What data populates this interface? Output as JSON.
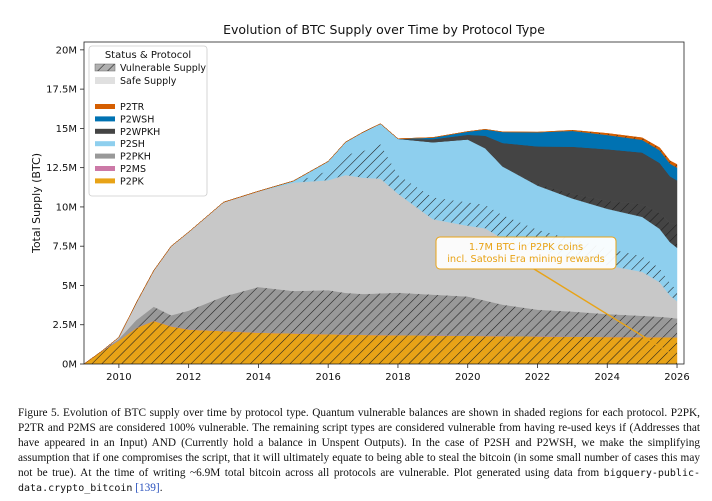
{
  "chart_data": {
    "type": "area",
    "title": "Evolution of BTC Supply over Time by Protocol Type",
    "ylabel": "Total Supply (BTC)",
    "xlabel": "",
    "xlim": [
      2009,
      2026.2
    ],
    "ylim": [
      0,
      20500000
    ],
    "x_ticks": [
      2010,
      2012,
      2014,
      2016,
      2018,
      2020,
      2022,
      2024,
      2026
    ],
    "y_ticks": [
      {
        "value": 0,
        "label": "0M"
      },
      {
        "value": 2500000,
        "label": "2.5M"
      },
      {
        "value": 5000000,
        "label": "5M"
      },
      {
        "value": 7500000,
        "label": "7.5M"
      },
      {
        "value": 10000000,
        "label": "10M"
      },
      {
        "value": 12500000,
        "label": "12.5M"
      },
      {
        "value": 15000000,
        "label": "15M"
      },
      {
        "value": 17500000,
        "label": "17.5M"
      },
      {
        "value": 20000000,
        "label": "20M"
      }
    ],
    "grid": false,
    "legend_placement": "top-left",
    "legend_title": "Status & Protocol",
    "status_legend": [
      {
        "name": "Vulnerable Supply",
        "style": "hatch"
      },
      {
        "name": "Safe Supply",
        "style": "solid-light"
      }
    ],
    "x": [
      2009,
      2009.5,
      2010,
      2010.5,
      2011,
      2011.5,
      2012,
      2013,
      2014,
      2015,
      2016,
      2016.5,
      2017,
      2017.5,
      2018,
      2019,
      2020,
      2020.5,
      2021,
      2022,
      2023,
      2024,
      2025,
      2025.5,
      2025.8,
      2026
    ],
    "series": [
      {
        "name": "P2PK",
        "color": "#e8a317",
        "vulnerable": [
          0,
          800000,
          1500000,
          2300000,
          2750000,
          2400000,
          2200000,
          2100000,
          2000000,
          1950000,
          1900000,
          1880000,
          1860000,
          1850000,
          1840000,
          1820000,
          1800000,
          1790000,
          1780000,
          1760000,
          1740000,
          1730000,
          1720000,
          1710000,
          1705000,
          1700000
        ],
        "safe": [
          0,
          0,
          0,
          0,
          0,
          0,
          0,
          0,
          0,
          0,
          0,
          0,
          0,
          0,
          0,
          0,
          0,
          0,
          0,
          0,
          0,
          0,
          0,
          0,
          0,
          0
        ]
      },
      {
        "name": "P2MS",
        "color": "#cc79a7",
        "vulnerable": [
          0,
          0,
          0,
          0,
          0,
          0,
          0,
          0,
          0,
          0,
          0,
          0,
          0,
          0,
          0,
          0,
          0,
          0,
          0,
          0,
          0,
          0,
          0,
          0,
          0,
          0
        ],
        "safe": [
          0,
          0,
          0,
          0,
          0,
          0,
          0,
          0,
          0,
          0,
          0,
          0,
          0,
          0,
          0,
          0,
          0,
          0,
          0,
          0,
          0,
          0,
          0,
          0,
          0,
          0
        ]
      },
      {
        "name": "P2PKH",
        "color": "#999999",
        "vulnerable": [
          0,
          0,
          100000,
          500000,
          900000,
          700000,
          1200000,
          2200000,
          2900000,
          2700000,
          2800000,
          2650000,
          2600000,
          2650000,
          2700000,
          2600000,
          2500000,
          2250000,
          2000000,
          1700000,
          1600000,
          1450000,
          1350000,
          1300000,
          1250000,
          1200000
        ],
        "safe": [
          0,
          0,
          100000,
          1100000,
          2300000,
          4400000,
          5000000,
          6000000,
          6100000,
          6900000,
          7000000,
          7500000,
          7400000,
          7300000,
          6300000,
          4800000,
          4500000,
          4600000,
          4200000,
          3800000,
          3400000,
          3100000,
          2800000,
          2200000,
          1400000,
          1100000
        ]
      },
      {
        "name": "P2SH",
        "color": "#8ecfee",
        "vulnerable": [
          0,
          0,
          0,
          0,
          0,
          0,
          0,
          0,
          0,
          0,
          600000,
          1300000,
          1700000,
          2200000,
          1200000,
          1400000,
          1500000,
          1500000,
          1500000,
          1300000,
          1200000,
          1100000,
          1000000,
          900000,
          800000,
          700000
        ],
        "safe": [
          0,
          0,
          0,
          0,
          0,
          0,
          0,
          0,
          0,
          100000,
          600000,
          800000,
          1200000,
          1300000,
          2300000,
          3500000,
          4000000,
          3600000,
          3100000,
          2800000,
          2600000,
          2500000,
          2500000,
          2500000,
          2600000,
          2700000
        ]
      },
      {
        "name": "P2WPKH",
        "color": "#444444",
        "vulnerable": [
          0,
          0,
          0,
          0,
          0,
          0,
          0,
          0,
          0,
          0,
          0,
          0,
          0,
          0,
          0,
          0,
          0,
          0,
          0,
          100000,
          300000,
          500000,
          800000,
          1000000,
          1200000,
          1500000
        ],
        "safe": [
          0,
          0,
          0,
          0,
          0,
          0,
          0,
          0,
          0,
          0,
          0,
          0,
          0,
          0,
          0,
          200000,
          300000,
          800000,
          1500000,
          2400000,
          3000000,
          3300000,
          3300000,
          3200000,
          3000000,
          2800000
        ]
      },
      {
        "name": "P2WSH",
        "color": "#0072b2",
        "vulnerable": [
          0,
          0,
          0,
          0,
          0,
          0,
          0,
          0,
          0,
          0,
          0,
          0,
          0,
          0,
          0,
          0,
          0,
          0,
          0,
          0,
          0,
          0,
          0,
          0,
          0,
          0
        ],
        "safe": [
          0,
          0,
          0,
          0,
          0,
          0,
          0,
          0,
          0,
          0,
          0,
          0,
          0,
          0,
          0,
          100000,
          200000,
          400000,
          700000,
          900000,
          1000000,
          900000,
          800000,
          800000,
          800000,
          800000
        ]
      },
      {
        "name": "P2TR",
        "color": "#d55e00",
        "vulnerable": [
          0,
          0,
          0,
          0,
          0,
          0,
          0,
          0,
          0,
          0,
          0,
          0,
          0,
          0,
          0,
          0,
          0,
          0,
          0,
          0,
          40000,
          100000,
          130000,
          160000,
          180000,
          200000
        ],
        "safe": [
          0,
          0,
          0,
          0,
          0,
          0,
          0,
          0,
          0,
          0,
          0,
          0,
          0,
          0,
          0,
          0,
          0,
          0,
          0,
          0,
          0,
          0,
          0,
          0,
          0,
          0
        ]
      }
    ],
    "annotation": {
      "text_lines": [
        "1.7M BTC in P2PK coins",
        "incl. Satoshi Era mining rewards"
      ],
      "color": "#e8a317",
      "arrow_target": {
        "x": 2025.8,
        "y": 700000
      }
    }
  },
  "caption": {
    "p1": "Figure 5. Evolution of BTC supply over time by protocol type. Quantum vulnerable balances are shown in shaded regions for each protocol. P2PK, P2TR and P2MS are considered 100% vulnerable. The remaining script types are considered vulnerable from having re-used keys if (Addresses that have appeared in an Input) AND (Currently hold a balance in Unspent Outputs). In the case of P2SH and P2WSH, we make the simplifying assumption that if one compromises the script, that it will ultimately equate to being able to steal the bitcoin (in some small number of cases this may not be true). At the time of writing ~6.9M total bitcoin across all protocols are vulnerable. Plot generated using data from ",
    "code": "bigquery-public-data.crypto_bitcoin",
    "ref": "[139]",
    "end": "."
  }
}
